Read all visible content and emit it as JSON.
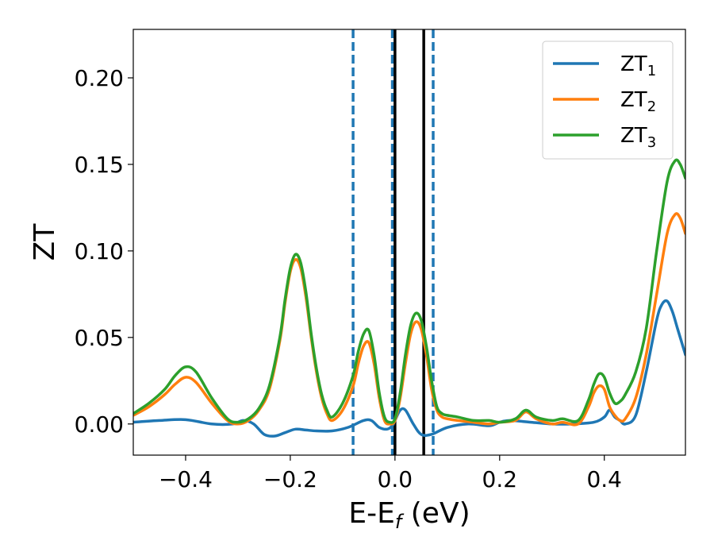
{
  "chart_data": {
    "type": "line",
    "xlabel": "E-E",
    "xlabel_sub": "f",
    "xlabel_suffix": " (eV)",
    "ylabel": "ZT",
    "xlim": [
      -0.5,
      0.555
    ],
    "ylim": [
      -0.018,
      0.228
    ],
    "xticks": [
      -0.4,
      -0.2,
      0.0,
      0.2,
      0.4
    ],
    "xtick_labels": [
      "−0.4",
      "−0.2",
      "0.0",
      "0.2",
      "0.4"
    ],
    "yticks": [
      0.0,
      0.05,
      0.1,
      0.15,
      0.2
    ],
    "ytick_labels": [
      "0.00",
      "0.05",
      "0.10",
      "0.15",
      "0.20"
    ],
    "grid": false,
    "legend_position": "top-right",
    "vlines_dashed": [
      -0.08,
      -0.005,
      0.073
    ],
    "vlines_solid": [
      0.0,
      0.055
    ],
    "vline_dashed_color": "#1f77b4",
    "vline_solid_color": "#000000",
    "series": [
      {
        "name": "ZT",
        "sub": "1",
        "color": "#1f77b4",
        "x": [
          -0.5,
          -0.45,
          -0.4,
          -0.35,
          -0.31,
          -0.29,
          -0.27,
          -0.25,
          -0.23,
          -0.21,
          -0.19,
          -0.17,
          -0.15,
          -0.12,
          -0.09,
          -0.06,
          -0.045,
          -0.03,
          -0.015,
          -0.005,
          0.0,
          0.01,
          0.02,
          0.035,
          0.05,
          0.07,
          0.1,
          0.14,
          0.18,
          0.2,
          0.22,
          0.26,
          0.3,
          0.34,
          0.38,
          0.4,
          0.41,
          0.42,
          0.43,
          0.44,
          0.46,
          0.48,
          0.5,
          0.51,
          0.52,
          0.53,
          0.54,
          0.555
        ],
        "y": [
          0.001,
          0.002,
          0.0025,
          0.0,
          0.0,
          0.002,
          0.0,
          -0.006,
          -0.007,
          -0.005,
          -0.003,
          -0.0035,
          -0.004,
          -0.004,
          -0.002,
          0.002,
          0.002,
          -0.002,
          -0.003,
          -0.001,
          0.002,
          0.008,
          0.008,
          0.0,
          -0.006,
          -0.006,
          -0.002,
          0.0,
          -0.001,
          0.001,
          0.002,
          0.001,
          0.0,
          0.0,
          0.001,
          0.004,
          0.008,
          0.004,
          0.002,
          0.0,
          0.005,
          0.03,
          0.06,
          0.069,
          0.071,
          0.065,
          0.055,
          0.04
        ]
      },
      {
        "name": "ZT",
        "sub": "2",
        "color": "#ff7f0e",
        "x": [
          -0.5,
          -0.47,
          -0.44,
          -0.42,
          -0.4,
          -0.38,
          -0.35,
          -0.32,
          -0.3,
          -0.28,
          -0.26,
          -0.24,
          -0.22,
          -0.21,
          -0.2,
          -0.19,
          -0.18,
          -0.17,
          -0.16,
          -0.15,
          -0.14,
          -0.13,
          -0.12,
          -0.1,
          -0.08,
          -0.07,
          -0.06,
          -0.05,
          -0.04,
          -0.03,
          -0.02,
          -0.01,
          0.0,
          0.01,
          0.02,
          0.03,
          0.04,
          0.05,
          0.06,
          0.07,
          0.08,
          0.09,
          0.1,
          0.12,
          0.15,
          0.18,
          0.2,
          0.23,
          0.25,
          0.27,
          0.3,
          0.32,
          0.35,
          0.37,
          0.38,
          0.39,
          0.4,
          0.41,
          0.42,
          0.43,
          0.44,
          0.46,
          0.48,
          0.5,
          0.52,
          0.535,
          0.545,
          0.555
        ],
        "y": [
          0.005,
          0.01,
          0.017,
          0.023,
          0.027,
          0.024,
          0.012,
          0.002,
          0.0,
          0.002,
          0.008,
          0.02,
          0.048,
          0.07,
          0.088,
          0.095,
          0.09,
          0.073,
          0.05,
          0.03,
          0.015,
          0.006,
          0.002,
          0.008,
          0.022,
          0.035,
          0.045,
          0.047,
          0.035,
          0.015,
          0.002,
          0.0,
          0.002,
          0.015,
          0.035,
          0.052,
          0.059,
          0.055,
          0.04,
          0.02,
          0.008,
          0.004,
          0.003,
          0.002,
          0.001,
          0.0,
          0.001,
          0.002,
          0.007,
          0.003,
          0.0,
          0.001,
          0.0,
          0.01,
          0.018,
          0.022,
          0.02,
          0.01,
          0.005,
          0.002,
          0.003,
          0.015,
          0.04,
          0.075,
          0.11,
          0.121,
          0.119,
          0.11
        ]
      },
      {
        "name": "ZT",
        "sub": "3",
        "color": "#2ca02c",
        "x": [
          -0.5,
          -0.47,
          -0.44,
          -0.42,
          -0.4,
          -0.38,
          -0.35,
          -0.32,
          -0.3,
          -0.28,
          -0.26,
          -0.24,
          -0.22,
          -0.21,
          -0.2,
          -0.19,
          -0.18,
          -0.17,
          -0.16,
          -0.15,
          -0.14,
          -0.13,
          -0.12,
          -0.1,
          -0.08,
          -0.07,
          -0.06,
          -0.05,
          -0.04,
          -0.03,
          -0.02,
          -0.01,
          0.0,
          0.01,
          0.02,
          0.03,
          0.04,
          0.05,
          0.06,
          0.07,
          0.08,
          0.09,
          0.1,
          0.12,
          0.15,
          0.18,
          0.2,
          0.23,
          0.25,
          0.27,
          0.3,
          0.32,
          0.35,
          0.37,
          0.38,
          0.39,
          0.4,
          0.41,
          0.42,
          0.43,
          0.44,
          0.46,
          0.48,
          0.5,
          0.52,
          0.535,
          0.545,
          0.555
        ],
        "y": [
          0.006,
          0.012,
          0.02,
          0.028,
          0.033,
          0.03,
          0.015,
          0.003,
          0.001,
          0.003,
          0.009,
          0.022,
          0.05,
          0.072,
          0.09,
          0.098,
          0.093,
          0.076,
          0.052,
          0.032,
          0.017,
          0.008,
          0.004,
          0.012,
          0.028,
          0.042,
          0.052,
          0.054,
          0.04,
          0.018,
          0.004,
          0.001,
          0.003,
          0.018,
          0.04,
          0.057,
          0.064,
          0.06,
          0.045,
          0.025,
          0.01,
          0.006,
          0.005,
          0.004,
          0.002,
          0.002,
          0.001,
          0.003,
          0.008,
          0.004,
          0.002,
          0.003,
          0.002,
          0.014,
          0.023,
          0.029,
          0.027,
          0.018,
          0.012,
          0.013,
          0.017,
          0.03,
          0.055,
          0.1,
          0.14,
          0.152,
          0.15,
          0.142
        ]
      }
    ]
  }
}
